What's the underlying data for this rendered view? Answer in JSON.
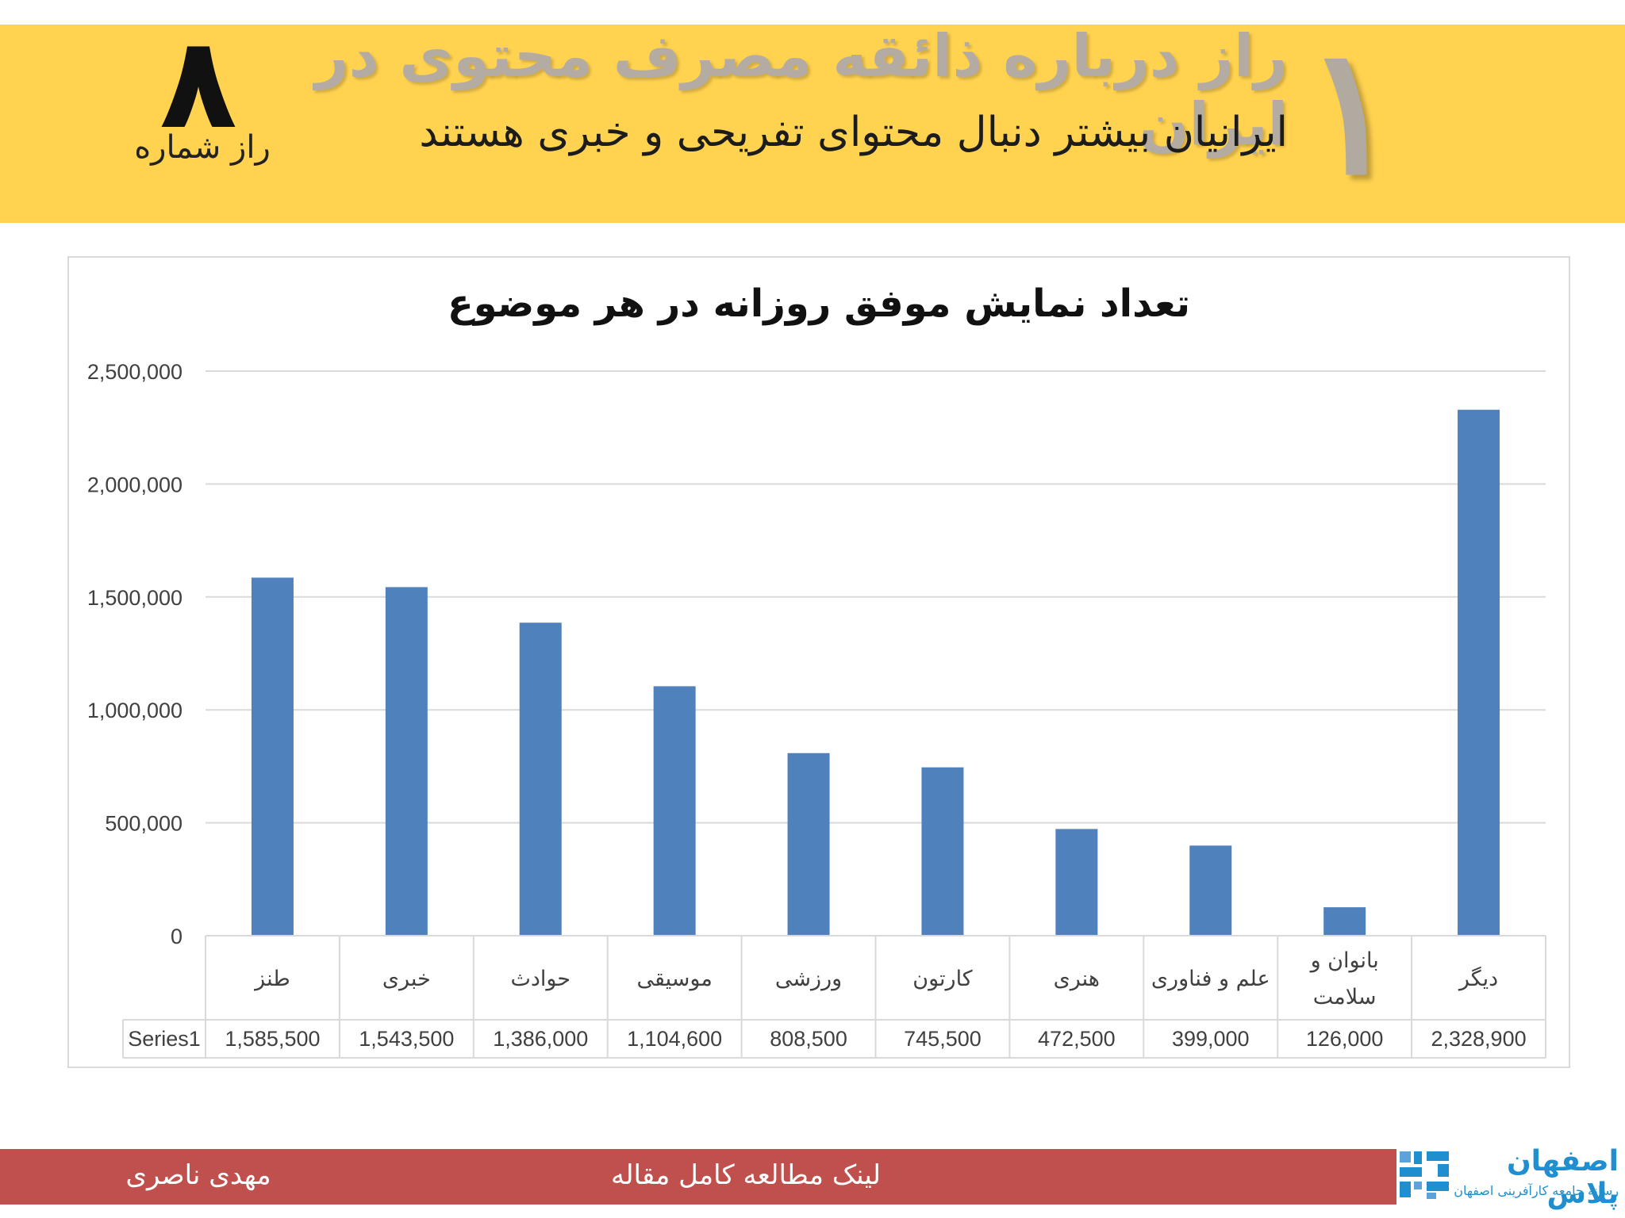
{
  "header": {
    "main_title": "راز درباره ذائقه مصرف محتوی در ایران",
    "subtitle": "ایرانیان بیشتر دنبال محتوای تفریحی و خبری هستند",
    "secret_number": "۱",
    "series_total": "۸",
    "secret_label": "راز شماره"
  },
  "colors": {
    "banner": "#ffd24f",
    "bar": "#4f81bd",
    "footer": "#c0504d",
    "logo_blue": "#1f8fd0"
  },
  "chart_data": {
    "type": "bar",
    "title": "تعداد نمایش موفق روزانه در هر موضوع",
    "categories": [
      "طنز",
      "خبری",
      "حوادث",
      "موسیقی",
      "ورزشی",
      "کارتون",
      "هنری",
      "علم و فناوری",
      "بانوان و سلامت",
      "دیگر"
    ],
    "series": [
      {
        "name": "Series1",
        "values": [
          1585500,
          1543500,
          1386000,
          1104600,
          808500,
          745500,
          472500,
          399000,
          126000,
          2328900
        ],
        "value_labels": [
          "1,585,500",
          "1,543,500",
          "1,386,000",
          "1,104,600",
          "808,500",
          "745,500",
          "472,500",
          "399,000",
          "126,000",
          "2,328,900"
        ]
      }
    ],
    "ylim": [
      0,
      2500000
    ],
    "y_ticks": [
      0,
      500000,
      1000000,
      1500000,
      2000000,
      2500000
    ],
    "y_tick_labels": [
      "0",
      "500,000",
      "1,000,000",
      "1,500,000",
      "2,000,000",
      "2,500,000"
    ],
    "grid": true,
    "legend": "data table below chart"
  },
  "footer": {
    "author": "مهدی ناصری",
    "link_text": "لینک مطالعه کامل مقاله"
  },
  "logo": {
    "name": "اصفهان پلاس",
    "tagline": "رسانه جامعه کارآفرینی اصفهان",
    "icon": "isfahan-plus-logo-icon"
  }
}
